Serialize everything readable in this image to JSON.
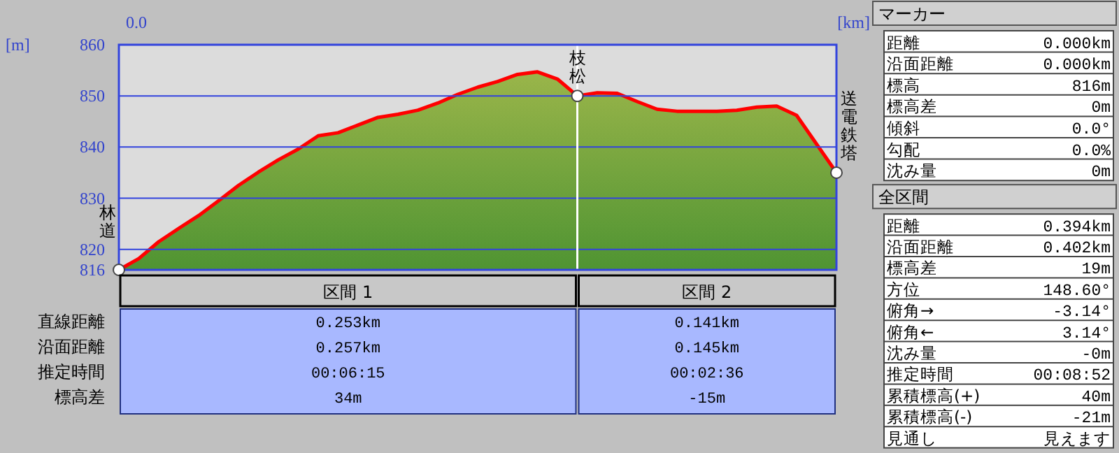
{
  "chart_data": {
    "type": "area",
    "xlabel": "[km]",
    "ylabel": "[m]",
    "categories": [
      null,
      null,
      null,
      null,
      null,
      null,
      null,
      null,
      null,
      null,
      null,
      null,
      null,
      null,
      null,
      null,
      null,
      null,
      null,
      null,
      null,
      null,
      null,
      null,
      null,
      null,
      null,
      null,
      null,
      null,
      null,
      null,
      null,
      null,
      null,
      null,
      null
    ],
    "ylim": [
      816,
      860
    ],
    "yticks": [
      816,
      820,
      830,
      840,
      850,
      860
    ],
    "grid": "y",
    "series": [
      {
        "color": "#ff0000",
        "values": [
          816,
          818.2,
          821.5,
          824.1,
          826.6,
          829.5,
          832.5,
          835.1,
          837.5,
          839.6,
          842.2,
          842.8,
          844.3,
          845.8,
          846.4,
          847.2,
          848.6,
          850.3,
          851.7,
          852.8,
          854.2,
          854.7,
          853.3,
          850,
          850.6,
          850.5,
          848.9,
          847.4,
          847,
          847,
          847,
          847.2,
          847.8,
          848,
          846.2,
          840.6,
          835
        ]
      }
    ],
    "annotations": [
      "林道",
      "枝松",
      "送電鉄塔",
      "0.0",
      "区間 1",
      "区間 2",
      "直線距離",
      "沿面距離",
      "推定時間",
      "標高差",
      "0.253km",
      "0.141km",
      "0.257km",
      "0.145km",
      "00:06:15",
      "00:02:36",
      "34m",
      "-15m",
      "マーカー",
      "距離",
      "0.000km",
      "沿面距離",
      "0.000km",
      "標高",
      "816m",
      "標高差",
      "0m",
      "傾斜",
      "0.0°",
      "勾配",
      "0.0%",
      "沈み量",
      "0m",
      "全区間",
      "距離",
      "0.394km",
      "沿面距離",
      "0.402km",
      "標高差",
      "19m",
      "方位",
      "148.60°",
      "俯角→",
      "-3.14°",
      "俯角←",
      "3.14°",
      "沈み量",
      "-0m",
      "推定時間",
      "00:08:52",
      "累積標高(+)",
      "40m",
      "累積標高(-)",
      "-21m",
      "見通し",
      "見えます"
    ]
  }
}
